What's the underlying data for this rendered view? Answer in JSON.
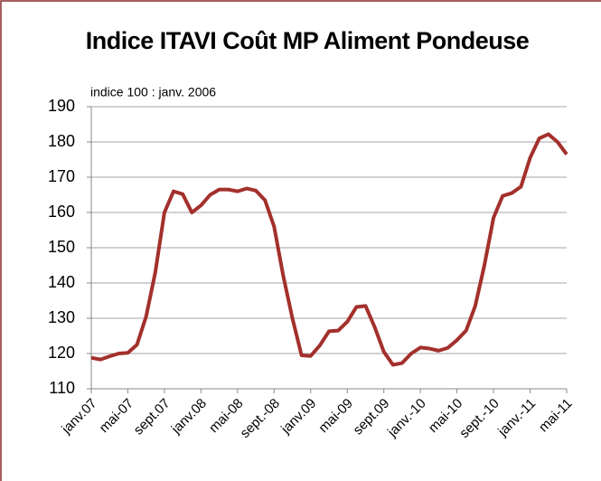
{
  "chart_data": {
    "type": "line",
    "title": "Indice ITAVI Coût MP Aliment Pondeuse",
    "subtitle": "indice 100 : janv. 2006",
    "categories": [
      "janv.07",
      null,
      null,
      null,
      "mai-07",
      null,
      null,
      null,
      "sept.07",
      null,
      null,
      null,
      "janv.08",
      null,
      null,
      null,
      "mai-08",
      null,
      null,
      null,
      "sept.-08",
      null,
      null,
      null,
      "janv.09",
      null,
      null,
      null,
      "mai-09",
      null,
      null,
      null,
      "sept.09",
      null,
      null,
      null,
      "janv.-10",
      null,
      null,
      null,
      "mai-10",
      null,
      null,
      null,
      "sept.-10",
      null,
      null,
      null,
      "janv.-11",
      null,
      null,
      null,
      "mai-11"
    ],
    "series": [
      {
        "name": "Indice",
        "color": "#a3302c",
        "values": [
          118.8,
          118.3,
          119.2,
          120,
          120.2,
          122.5,
          130.5,
          143,
          160,
          166,
          165.2,
          160,
          162,
          165,
          166.5,
          166.5,
          166,
          166.8,
          166.2,
          163.5,
          156,
          142,
          130,
          119.5,
          119.3,
          122.3,
          126.3,
          126.5,
          129,
          133.2,
          133.5,
          127.5,
          120.5,
          116.8,
          117.3,
          120,
          121.7,
          121.4,
          120.8,
          121.6,
          123.8,
          126.5,
          133.5,
          145,
          158.5,
          164.7,
          165.5,
          167.3,
          175.5,
          181,
          182.2,
          180,
          176.5
        ]
      }
    ],
    "ylim": [
      110,
      190
    ],
    "yticks": [
      110,
      120,
      130,
      140,
      150,
      160,
      170,
      180,
      190
    ],
    "grid": true
  }
}
